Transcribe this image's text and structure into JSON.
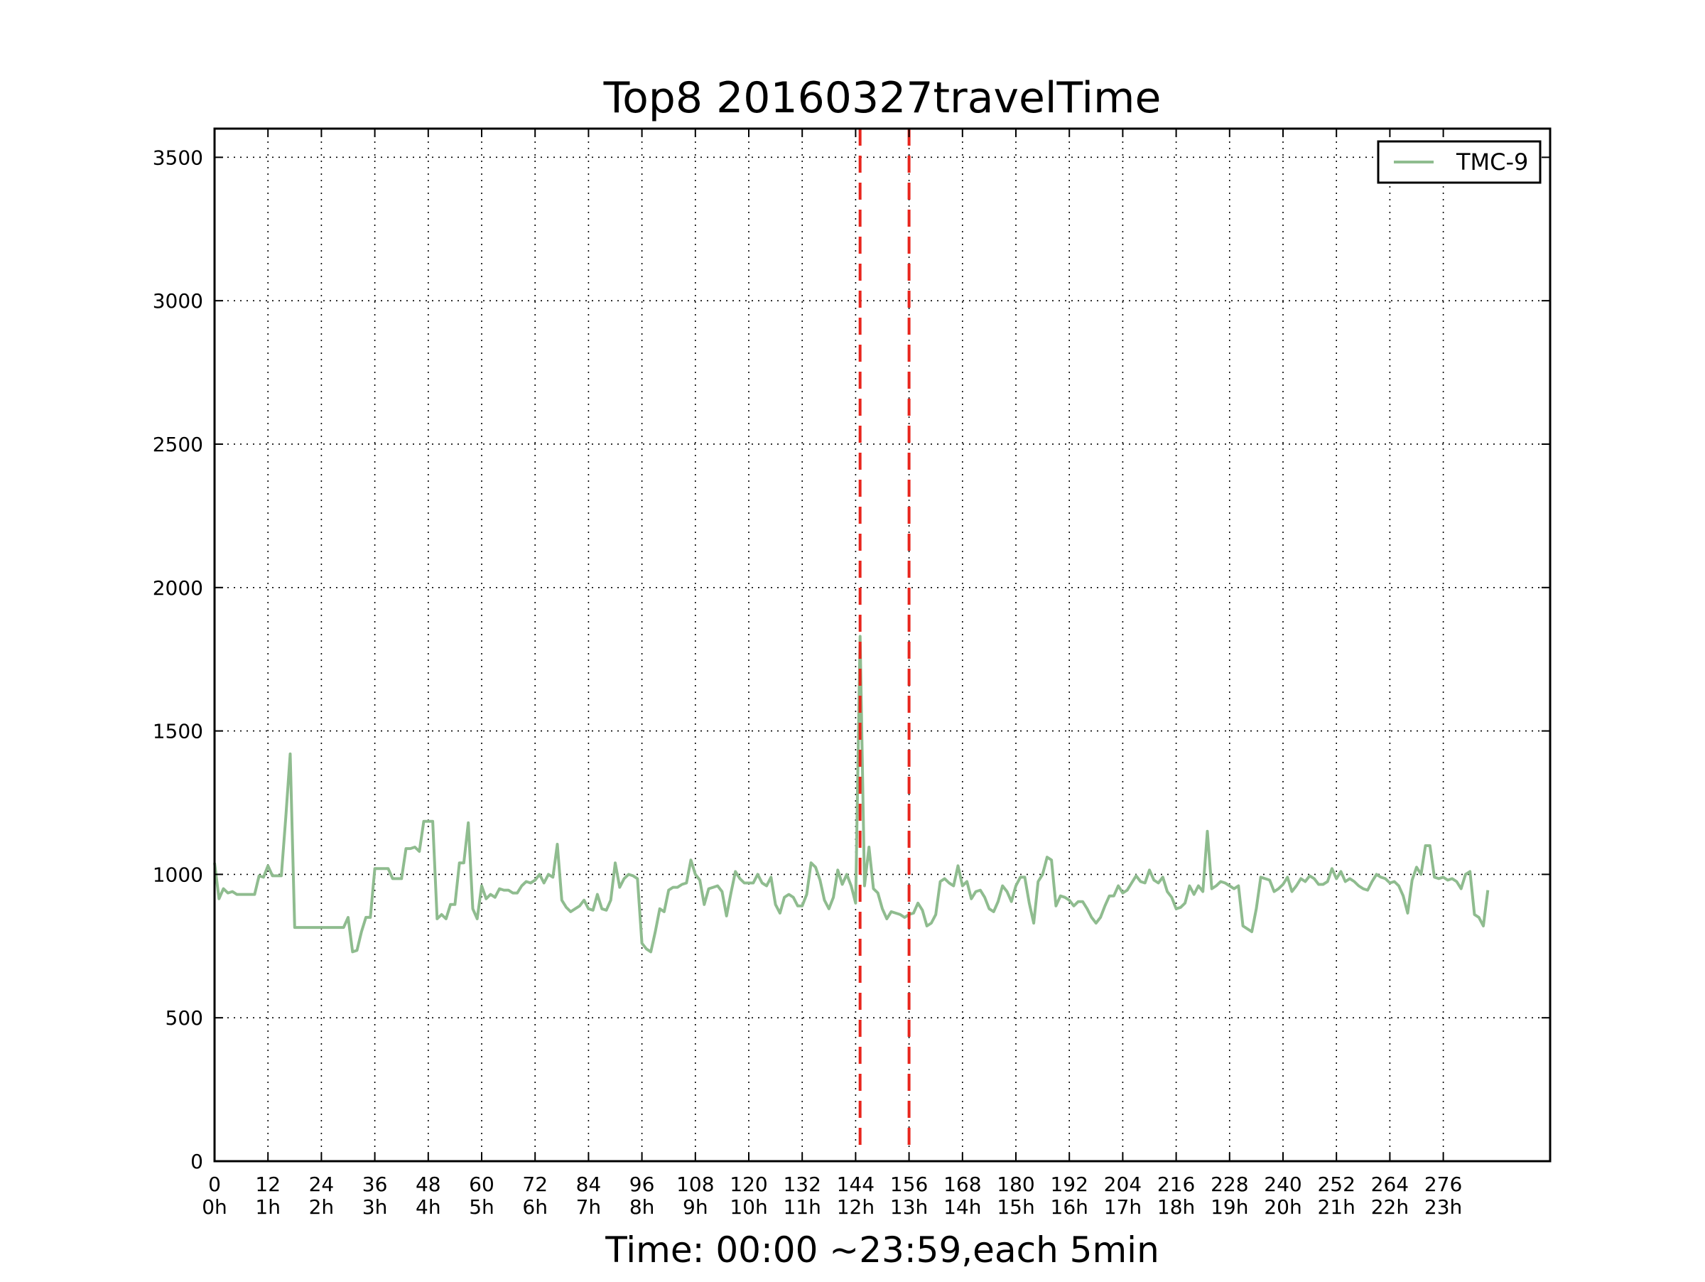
{
  "chart_data": {
    "type": "line",
    "title": "Top8 20160327travelTime",
    "xlabel": "Time: 00:00 ~23:59,each 5min",
    "ylabel": "",
    "xlim": [
      0,
      300
    ],
    "ylim": [
      0,
      3600
    ],
    "grid": true,
    "legend_position": "top-right",
    "x_ticks": [
      0,
      12,
      24,
      36,
      48,
      60,
      72,
      84,
      96,
      108,
      120,
      132,
      144,
      156,
      168,
      180,
      192,
      204,
      216,
      228,
      240,
      252,
      264,
      276
    ],
    "x_tick_labels": [
      "0\n0h",
      "12\n1h",
      "24\n2h",
      "36\n3h",
      "48\n4h",
      "60\n5h",
      "72\n6h",
      "84\n7h",
      "96\n8h",
      "108\n9h",
      "120\n10h",
      "132\n11h",
      "144\n12h",
      "156\n13h",
      "168\n14h",
      "180\n15h",
      "192\n16h",
      "204\n17h",
      "216\n18h",
      "228\n19h",
      "240\n20h",
      "252\n21h",
      "264\n22h",
      "276\n23h"
    ],
    "y_ticks": [
      0,
      500,
      1000,
      1500,
      2000,
      2500,
      3000,
      3500
    ],
    "y_tick_labels": [
      "0",
      "500",
      "1000",
      "1500",
      "2000",
      "2500",
      "3000",
      "3500"
    ],
    "vertical_markers": [
      {
        "x": 145,
        "color": "#e8251c",
        "style": "dashed"
      },
      {
        "x": 156,
        "color": "#e8251c",
        "style": "dashed"
      }
    ],
    "series": [
      {
        "name": "TMC-9",
        "color": "#8fbc8f",
        "values": [
          1040,
          915,
          950,
          935,
          940,
          930,
          930,
          930,
          930,
          930,
          995,
          990,
          1030,
          995,
          995,
          995,
          1200,
          1420,
          815,
          815,
          815,
          815,
          815,
          815,
          815,
          815,
          815,
          815,
          815,
          815,
          850,
          730,
          735,
          800,
          850,
          850,
          1020,
          1020,
          1020,
          1020,
          985,
          985,
          985,
          1090,
          1090,
          1095,
          1080,
          1185,
          1185,
          1185,
          845,
          860,
          845,
          895,
          895,
          1040,
          1040,
          1180,
          880,
          845,
          960,
          915,
          930,
          920,
          950,
          945,
          945,
          935,
          935,
          960,
          975,
          970,
          980,
          1000,
          970,
          1000,
          990,
          1105,
          910,
          885,
          870,
          880,
          890,
          910,
          880,
          875,
          930,
          880,
          875,
          910,
          1040,
          955,
          985,
          1000,
          995,
          985,
          760,
          740,
          730,
          800,
          880,
          870,
          945,
          955,
          955,
          965,
          970,
          1050,
          1000,
          980,
          895,
          950,
          955,
          960,
          940,
          855,
          935,
          1010,
          985,
          970,
          970,
          970,
          1000,
          970,
          960,
          990,
          895,
          865,
          920,
          930,
          920,
          890,
          890,
          930,
          1040,
          1025,
          980,
          910,
          880,
          920,
          1015,
          965,
          1000,
          960,
          900,
          1830,
          960,
          1095,
          950,
          935,
          880,
          845,
          870,
          865,
          860,
          850,
          860,
          865,
          900,
          875,
          820,
          830,
          860,
          975,
          985,
          970,
          960,
          1030,
          960,
          975,
          915,
          940,
          945,
          920,
          880,
          870,
          905,
          960,
          940,
          905,
          960,
          990,
          990,
          900,
          830,
          975,
          1000,
          1060,
          1050,
          890,
          925,
          920,
          910,
          890,
          905,
          905,
          880,
          850,
          830,
          850,
          890,
          925,
          925,
          960,
          935,
          945,
          970,
          995,
          975,
          970,
          1015,
          980,
          970,
          990,
          940,
          920,
          880,
          885,
          900,
          960,
          930,
          960,
          940,
          1150,
          950,
          960,
          975,
          970,
          960,
          950,
          960,
          820,
          810,
          800,
          880,
          990,
          985,
          980,
          940,
          950,
          965,
          990,
          940,
          960,
          985,
          975,
          995,
          985,
          965,
          965,
          975,
          1020,
          985,
          1010,
          975,
          985,
          975,
          960,
          950,
          945,
          975,
          1000,
          990,
          985,
          970,
          975,
          960,
          925,
          865,
          980,
          1025,
          1000,
          1100,
          1100,
          990,
          985,
          990,
          980,
          985,
          975,
          950,
          1000,
          1010,
          860,
          850,
          820,
          945
        ]
      }
    ]
  }
}
